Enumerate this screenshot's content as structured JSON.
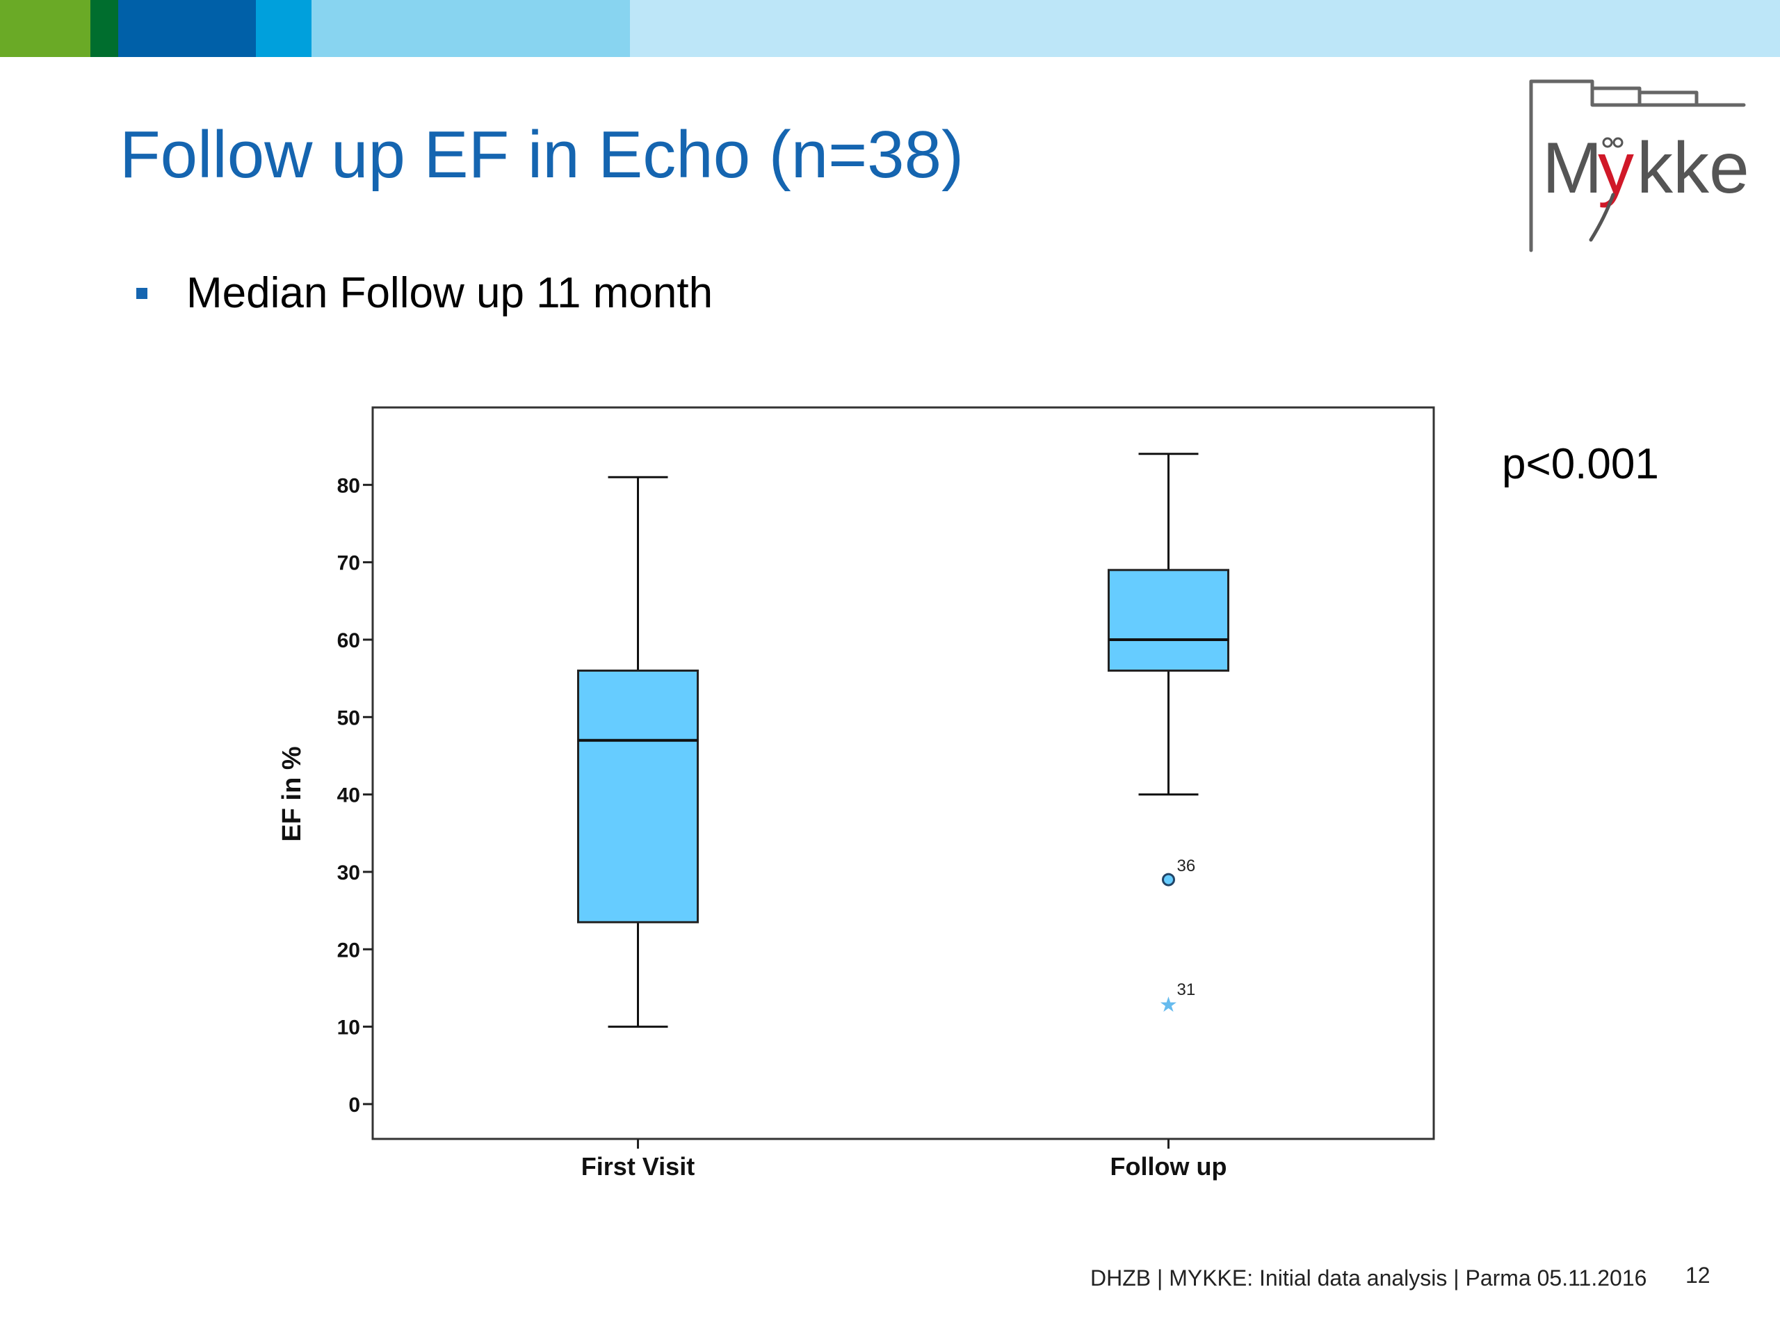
{
  "brand": {
    "bar_colors": [
      "#6aaa26",
      "#006e2e",
      "#0060a8",
      "#00a0dc",
      "#88d4f0",
      "#bde6f8"
    ],
    "title_color": "#1565b0",
    "bullet_color": "#1565b0",
    "logo_text": "Mykke"
  },
  "slide": {
    "title": "Follow up EF in Echo (n=38)",
    "bullet": "Median Follow up 11 month",
    "p_value": "p<0.001"
  },
  "footer": {
    "text": "DHZB | MYKKE: Initial data analysis | Parma 05.11.2016",
    "page": "12"
  },
  "chart_data": {
    "type": "boxplot",
    "ylabel": "EF in %",
    "xlabel": "",
    "ylim": [
      -4.5,
      90
    ],
    "yticks": [
      0,
      10,
      20,
      30,
      40,
      50,
      60,
      70,
      80
    ],
    "categories": [
      "First Visit",
      "Follow up"
    ],
    "box_color": "#66ccff",
    "outlier_star_color": "#66bbee",
    "boxes": [
      {
        "category": "First Visit",
        "whisker_low": 10,
        "q1": 23.5,
        "median": 47,
        "q3": 56,
        "whisker_high": 81,
        "outliers": []
      },
      {
        "category": "Follow up",
        "whisker_low": 40,
        "q1": 56,
        "median": 60,
        "q3": 69,
        "whisker_high": 84,
        "outliers": [
          {
            "value": 29,
            "label": "36",
            "marker": "circle"
          },
          {
            "value": 13,
            "label": "31",
            "marker": "star"
          }
        ]
      }
    ]
  }
}
